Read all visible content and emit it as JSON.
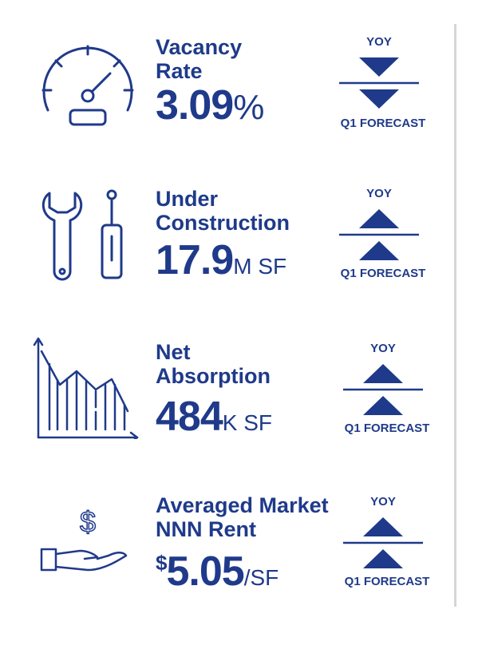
{
  "colors": {
    "primary": "#1f3a8a",
    "divider": "#d6d6d6"
  },
  "metrics": [
    {
      "label_lines": [
        "Vacancy",
        "Rate"
      ],
      "value_prefix": "",
      "value": "3.09",
      "unit": "%",
      "yoy_label": "YOY",
      "forecast_label": "Q1 FORECAST",
      "yoy_direction": "down",
      "forecast_direction": "down",
      "icon": "speedometer-icon"
    },
    {
      "label_lines": [
        "Under",
        "Construction"
      ],
      "value_prefix": "",
      "value": "17.9",
      "unit": "M SF",
      "yoy_label": "YOY",
      "forecast_label": "Q1 FORECAST",
      "yoy_direction": "up",
      "forecast_direction": "up",
      "icon": "wrench-screwdriver-icon"
    },
    {
      "label_lines": [
        "Net",
        "Absorption"
      ],
      "value_prefix": "",
      "value": "484",
      "unit": "K SF",
      "yoy_label": "YOY",
      "forecast_label": "Q1 FORECAST",
      "yoy_direction": "up",
      "forecast_direction": "up",
      "icon": "chart-icon"
    },
    {
      "label_lines": [
        "Averaged Market",
        "NNN Rent"
      ],
      "value_prefix": "$",
      "value": "5.05",
      "unit": "/SF",
      "yoy_label": "YOY",
      "forecast_label": "Q1 FORECAST",
      "yoy_direction": "up",
      "forecast_direction": "up",
      "icon": "dollar-hand-icon"
    }
  ]
}
